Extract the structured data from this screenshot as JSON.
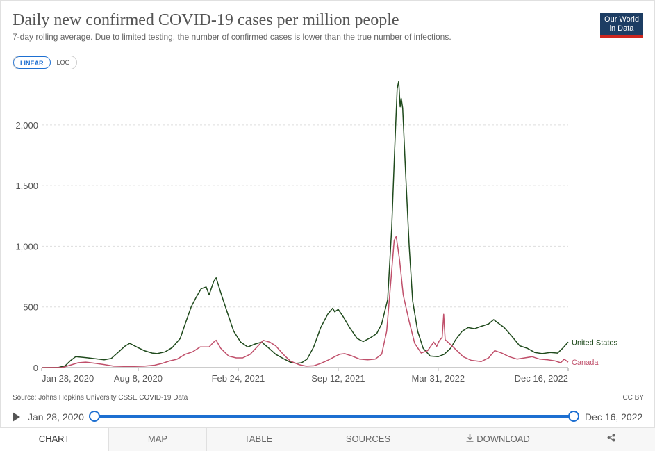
{
  "header": {
    "title": "Daily new confirmed COVID-19 cases per million people",
    "subtitle": "7-day rolling average. Due to limited testing, the number of confirmed cases is lower than the true number of infections.",
    "logo_line1": "Our World",
    "logo_line2": "in Data"
  },
  "scale_toggle": {
    "linear": "LINEAR",
    "log": "LOG",
    "selected": "LINEAR"
  },
  "footer": {
    "source": "Source: Johns Hopkins University CSSE COVID-19 Data",
    "license": "CC BY"
  },
  "timeline": {
    "start_label": "Jan 28, 2020",
    "end_label": "Dec 16, 2022",
    "icon": "play-icon"
  },
  "tabs": [
    {
      "label": "CHART",
      "icon": ""
    },
    {
      "label": "MAP",
      "icon": ""
    },
    {
      "label": "TABLE",
      "icon": ""
    },
    {
      "label": "SOURCES",
      "icon": ""
    },
    {
      "label": "DOWNLOAD",
      "icon": "download-icon"
    },
    {
      "label": "",
      "icon": "share-icon"
    }
  ],
  "colors": {
    "us": "#1f4a1c",
    "canada": "#c0506b",
    "accent": "#1d6fd1",
    "grid": "#dddddd"
  },
  "chart_data": {
    "type": "line",
    "title": "Daily new confirmed COVID-19 cases per million people",
    "ylim": [
      0,
      2400
    ],
    "yticks": [
      {
        "value": 0,
        "label": "0"
      },
      {
        "value": 500,
        "label": "500"
      },
      {
        "value": 1000,
        "label": "1,000"
      },
      {
        "value": 1500,
        "label": "1,500"
      },
      {
        "value": 2000,
        "label": "2,000"
      }
    ],
    "xlim": [
      "2020-01-28",
      "2022-12-16"
    ],
    "xticks": [
      {
        "date": "2020-01-28",
        "label": "Jan 28, 2020"
      },
      {
        "date": "2020-08-08",
        "label": "Aug 8, 2020"
      },
      {
        "date": "2021-02-24",
        "label": "Feb 24, 2021"
      },
      {
        "date": "2021-09-12",
        "label": "Sep 12, 2021"
      },
      {
        "date": "2022-03-31",
        "label": "Mar 31, 2022"
      },
      {
        "date": "2022-12-16",
        "label": "Dec 16, 2022"
      }
    ],
    "grid": true,
    "series": [
      {
        "name": "United States",
        "color": "#1f4a1c",
        "points": [
          [
            "2020-01-28",
            0
          ],
          [
            "2020-03-01",
            1
          ],
          [
            "2020-03-15",
            15
          ],
          [
            "2020-03-25",
            55
          ],
          [
            "2020-04-05",
            90
          ],
          [
            "2020-04-20",
            85
          ],
          [
            "2020-05-10",
            75
          ],
          [
            "2020-06-01",
            65
          ],
          [
            "2020-06-15",
            75
          ],
          [
            "2020-06-30",
            130
          ],
          [
            "2020-07-12",
            175
          ],
          [
            "2020-07-22",
            200
          ],
          [
            "2020-08-05",
            170
          ],
          [
            "2020-08-20",
            140
          ],
          [
            "2020-09-05",
            120
          ],
          [
            "2020-09-15",
            115
          ],
          [
            "2020-10-01",
            130
          ],
          [
            "2020-10-15",
            165
          ],
          [
            "2020-10-31",
            240
          ],
          [
            "2020-11-10",
            360
          ],
          [
            "2020-11-22",
            500
          ],
          [
            "2020-12-02",
            580
          ],
          [
            "2020-12-12",
            650
          ],
          [
            "2020-12-22",
            665
          ],
          [
            "2020-12-28",
            600
          ],
          [
            "2021-01-06",
            710
          ],
          [
            "2021-01-11",
            740
          ],
          [
            "2021-01-20",
            620
          ],
          [
            "2021-02-01",
            470
          ],
          [
            "2021-02-15",
            300
          ],
          [
            "2021-03-01",
            210
          ],
          [
            "2021-03-15",
            170
          ],
          [
            "2021-03-30",
            195
          ],
          [
            "2021-04-12",
            210
          ],
          [
            "2021-04-25",
            165
          ],
          [
            "2021-05-10",
            110
          ],
          [
            "2021-05-25",
            75
          ],
          [
            "2021-06-08",
            45
          ],
          [
            "2021-06-20",
            35
          ],
          [
            "2021-07-01",
            40
          ],
          [
            "2021-07-12",
            70
          ],
          [
            "2021-07-25",
            170
          ],
          [
            "2021-08-08",
            330
          ],
          [
            "2021-08-22",
            440
          ],
          [
            "2021-09-01",
            490
          ],
          [
            "2021-09-05",
            460
          ],
          [
            "2021-09-12",
            480
          ],
          [
            "2021-09-22",
            420
          ],
          [
            "2021-10-05",
            330
          ],
          [
            "2021-10-20",
            240
          ],
          [
            "2021-11-01",
            215
          ],
          [
            "2021-11-15",
            245
          ],
          [
            "2021-11-28",
            280
          ],
          [
            "2021-12-08",
            360
          ],
          [
            "2021-12-20",
            560
          ],
          [
            "2021-12-28",
            1150
          ],
          [
            "2022-01-03",
            1800
          ],
          [
            "2022-01-08",
            2300
          ],
          [
            "2022-01-11",
            2360
          ],
          [
            "2022-01-14",
            2150
          ],
          [
            "2022-01-16",
            2220
          ],
          [
            "2022-01-19",
            2140
          ],
          [
            "2022-01-25",
            1600
          ],
          [
            "2022-02-01",
            1000
          ],
          [
            "2022-02-08",
            550
          ],
          [
            "2022-02-18",
            300
          ],
          [
            "2022-03-01",
            160
          ],
          [
            "2022-03-15",
            95
          ],
          [
            "2022-03-31",
            90
          ],
          [
            "2022-04-12",
            110
          ],
          [
            "2022-04-25",
            160
          ],
          [
            "2022-05-05",
            230
          ],
          [
            "2022-05-18",
            300
          ],
          [
            "2022-05-30",
            330
          ],
          [
            "2022-06-12",
            320
          ],
          [
            "2022-06-25",
            340
          ],
          [
            "2022-07-10",
            360
          ],
          [
            "2022-07-20",
            395
          ],
          [
            "2022-07-28",
            370
          ],
          [
            "2022-08-10",
            330
          ],
          [
            "2022-08-25",
            260
          ],
          [
            "2022-09-10",
            180
          ],
          [
            "2022-09-25",
            160
          ],
          [
            "2022-10-10",
            125
          ],
          [
            "2022-10-25",
            115
          ],
          [
            "2022-11-10",
            125
          ],
          [
            "2022-11-25",
            120
          ],
          [
            "2022-12-05",
            160
          ],
          [
            "2022-12-16",
            210
          ]
        ]
      },
      {
        "name": "Canada",
        "color": "#c0506b",
        "points": [
          [
            "2020-01-28",
            0
          ],
          [
            "2020-03-10",
            2
          ],
          [
            "2020-03-25",
            20
          ],
          [
            "2020-04-10",
            40
          ],
          [
            "2020-04-25",
            45
          ],
          [
            "2020-05-15",
            35
          ],
          [
            "2020-06-01",
            25
          ],
          [
            "2020-06-20",
            12
          ],
          [
            "2020-07-10",
            10
          ],
          [
            "2020-08-01",
            10
          ],
          [
            "2020-08-20",
            12
          ],
          [
            "2020-09-10",
            20
          ],
          [
            "2020-09-25",
            35
          ],
          [
            "2020-10-10",
            55
          ],
          [
            "2020-10-25",
            70
          ],
          [
            "2020-11-10",
            110
          ],
          [
            "2020-11-25",
            130
          ],
          [
            "2020-12-10",
            170
          ],
          [
            "2020-12-28",
            170
          ],
          [
            "2021-01-06",
            210
          ],
          [
            "2021-01-11",
            225
          ],
          [
            "2021-01-20",
            160
          ],
          [
            "2021-02-05",
            95
          ],
          [
            "2021-02-20",
            80
          ],
          [
            "2021-03-05",
            80
          ],
          [
            "2021-03-20",
            110
          ],
          [
            "2021-04-05",
            180
          ],
          [
            "2021-04-15",
            225
          ],
          [
            "2021-04-28",
            210
          ],
          [
            "2021-05-10",
            180
          ],
          [
            "2021-05-25",
            110
          ],
          [
            "2021-06-08",
            55
          ],
          [
            "2021-06-25",
            25
          ],
          [
            "2021-07-10",
            12
          ],
          [
            "2021-07-25",
            15
          ],
          [
            "2021-08-08",
            35
          ],
          [
            "2021-08-22",
            60
          ],
          [
            "2021-09-05",
            90
          ],
          [
            "2021-09-15",
            110
          ],
          [
            "2021-09-25",
            115
          ],
          [
            "2021-10-10",
            95
          ],
          [
            "2021-10-25",
            70
          ],
          [
            "2021-11-10",
            65
          ],
          [
            "2021-11-25",
            70
          ],
          [
            "2021-12-08",
            110
          ],
          [
            "2021-12-18",
            300
          ],
          [
            "2021-12-26",
            700
          ],
          [
            "2022-01-02",
            1050
          ],
          [
            "2022-01-06",
            1080
          ],
          [
            "2022-01-09",
            1000
          ],
          [
            "2022-01-13",
            880
          ],
          [
            "2022-01-20",
            600
          ],
          [
            "2022-02-01",
            380
          ],
          [
            "2022-02-12",
            200
          ],
          [
            "2022-02-25",
            120
          ],
          [
            "2022-03-10",
            140
          ],
          [
            "2022-03-22",
            210
          ],
          [
            "2022-03-28",
            175
          ],
          [
            "2022-04-02",
            220
          ],
          [
            "2022-04-08",
            250
          ],
          [
            "2022-04-11",
            440
          ],
          [
            "2022-04-14",
            230
          ],
          [
            "2022-04-22",
            200
          ],
          [
            "2022-05-05",
            150
          ],
          [
            "2022-05-20",
            90
          ],
          [
            "2022-06-05",
            60
          ],
          [
            "2022-06-25",
            50
          ],
          [
            "2022-07-10",
            80
          ],
          [
            "2022-07-22",
            140
          ],
          [
            "2022-08-05",
            120
          ],
          [
            "2022-08-20",
            90
          ],
          [
            "2022-09-05",
            70
          ],
          [
            "2022-09-20",
            80
          ],
          [
            "2022-10-05",
            90
          ],
          [
            "2022-10-20",
            70
          ],
          [
            "2022-11-05",
            65
          ],
          [
            "2022-11-20",
            55
          ],
          [
            "2022-12-01",
            40
          ],
          [
            "2022-12-08",
            70
          ],
          [
            "2022-12-16",
            45
          ]
        ]
      }
    ]
  }
}
